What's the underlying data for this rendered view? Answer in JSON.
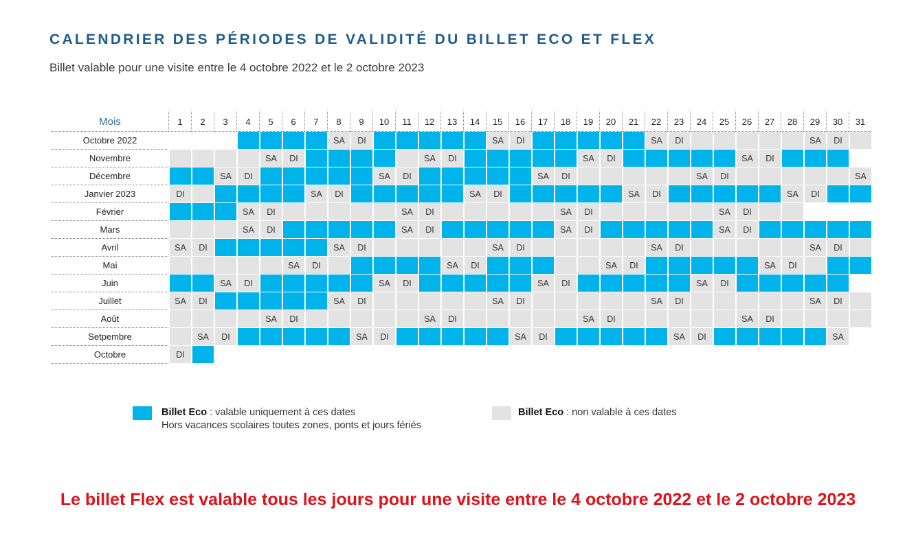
{
  "title": "CALENDRIER DES PÉRIODES DE VALIDITÉ DU BILLET ECO ET FLEX",
  "subtitle": "Billet valable pour une visite entre le 4 octobre 2022 et le 2 octobre 2023",
  "colors": {
    "eco_valid": "#00b3ea",
    "eco_not_valid": "#e3e3e3",
    "title": "#1f5c8c",
    "flex_note": "#e0111b"
  },
  "calendar": {
    "month_header": "Mois",
    "days": [
      "1",
      "2",
      "3",
      "4",
      "5",
      "6",
      "7",
      "8",
      "9",
      "10",
      "11",
      "12",
      "13",
      "14",
      "15",
      "16",
      "17",
      "18",
      "19",
      "20",
      "21",
      "22",
      "23",
      "24",
      "25",
      "26",
      "27",
      "28",
      "29",
      "30",
      "31"
    ],
    "months": [
      {
        "name": "Octobre 2022",
        "cells": [
          "",
          "",
          "",
          "B",
          "B",
          "B",
          "B",
          "SA",
          "DI",
          "B",
          "B",
          "B",
          "B",
          "B",
          "SA",
          "DI",
          "B",
          "B",
          "B",
          "B",
          "B",
          "SA",
          "DI",
          "G",
          "G",
          "G",
          "G",
          "G",
          "SA",
          "DI",
          "G"
        ]
      },
      {
        "name": "Novembre",
        "cells": [
          "G",
          "G",
          "G",
          "G",
          "SA",
          "DI",
          "B",
          "B",
          "B",
          "B",
          "G",
          "SA",
          "DI",
          "B",
          "B",
          "B",
          "B",
          "B",
          "SA",
          "DI",
          "B",
          "B",
          "B",
          "B",
          "B",
          "SA",
          "DI",
          "B",
          "B",
          "B",
          ""
        ]
      },
      {
        "name": "Décembre",
        "cells": [
          "B",
          "B",
          "SA",
          "DI",
          "B",
          "B",
          "B",
          "B",
          "B",
          "SA",
          "DI",
          "B",
          "B",
          "B",
          "B",
          "B",
          "SA",
          "DI",
          "G",
          "G",
          "G",
          "G",
          "G",
          "SA",
          "DI",
          "G",
          "G",
          "G",
          "G",
          "G",
          "SA"
        ]
      },
      {
        "name": "Janvier 2023",
        "cells": [
          "DI",
          "G",
          "B",
          "B",
          "B",
          "B",
          "SA",
          "DI",
          "B",
          "B",
          "B",
          "B",
          "B",
          "SA",
          "DI",
          "B",
          "B",
          "B",
          "B",
          "B",
          "SA",
          "DI",
          "B",
          "B",
          "B",
          "B",
          "B",
          "SA",
          "DI",
          "B",
          "B"
        ]
      },
      {
        "name": "Février",
        "cells": [
          "B",
          "B",
          "B",
          "SA",
          "DI",
          "G",
          "G",
          "G",
          "G",
          "G",
          "SA",
          "DI",
          "G",
          "G",
          "G",
          "G",
          "G",
          "SA",
          "DI",
          "G",
          "G",
          "G",
          "G",
          "G",
          "SA",
          "DI",
          "G",
          "G",
          "",
          "",
          ""
        ]
      },
      {
        "name": "Mars",
        "cells": [
          "G",
          "G",
          "G",
          "SA",
          "DI",
          "B",
          "B",
          "B",
          "B",
          "B",
          "SA",
          "DI",
          "B",
          "B",
          "B",
          "B",
          "B",
          "SA",
          "DI",
          "B",
          "B",
          "B",
          "B",
          "B",
          "SA",
          "DI",
          "B",
          "B",
          "B",
          "B",
          "B"
        ]
      },
      {
        "name": "Avril",
        "cells": [
          "SA",
          "DI",
          "B",
          "B",
          "B",
          "B",
          "B",
          "SA",
          "DI",
          "G",
          "G",
          "G",
          "G",
          "G",
          "SA",
          "DI",
          "G",
          "G",
          "G",
          "G",
          "G",
          "SA",
          "DI",
          "G",
          "G",
          "G",
          "G",
          "G",
          "SA",
          "DI",
          "G"
        ]
      },
      {
        "name": "Mai",
        "cells": [
          "G",
          "G",
          "G",
          "G",
          "G",
          "SA",
          "DI",
          "G",
          "B",
          "B",
          "B",
          "B",
          "SA",
          "DI",
          "B",
          "B",
          "B",
          "G",
          "G",
          "SA",
          "DI",
          "B",
          "B",
          "B",
          "B",
          "B",
          "SA",
          "DI",
          "G",
          "B",
          "B"
        ]
      },
      {
        "name": "Juin",
        "cells": [
          "B",
          "B",
          "SA",
          "DI",
          "B",
          "B",
          "B",
          "B",
          "B",
          "SA",
          "DI",
          "B",
          "B",
          "B",
          "B",
          "B",
          "SA",
          "DI",
          "B",
          "B",
          "B",
          "B",
          "B",
          "SA",
          "DI",
          "B",
          "B",
          "B",
          "B",
          "B",
          ""
        ]
      },
      {
        "name": "Juillet",
        "cells": [
          "SA",
          "DI",
          "B",
          "B",
          "B",
          "B",
          "B",
          "SA",
          "DI",
          "G",
          "G",
          "G",
          "G",
          "G",
          "SA",
          "DI",
          "G",
          "G",
          "G",
          "G",
          "G",
          "SA",
          "DI",
          "G",
          "G",
          "G",
          "G",
          "G",
          "SA",
          "DI",
          "G"
        ]
      },
      {
        "name": "Août",
        "cells": [
          "G",
          "G",
          "G",
          "G",
          "SA",
          "DI",
          "G",
          "G",
          "G",
          "G",
          "G",
          "SA",
          "DI",
          "G",
          "G",
          "G",
          "G",
          "G",
          "SA",
          "DI",
          "G",
          "G",
          "G",
          "G",
          "G",
          "SA",
          "DI",
          "G",
          "G",
          "G",
          "G"
        ]
      },
      {
        "name": "Setpembre",
        "cells": [
          "G",
          "SA",
          "DI",
          "B",
          "B",
          "B",
          "B",
          "B",
          "SA",
          "DI",
          "B",
          "B",
          "B",
          "B",
          "B",
          "SA",
          "DI",
          "B",
          "B",
          "B",
          "B",
          "B",
          "SA",
          "DI",
          "B",
          "B",
          "B",
          "B",
          "B",
          "SA",
          ""
        ]
      },
      {
        "name": "Octobre",
        "cells": [
          "DI",
          "B",
          "",
          "",
          "",
          "",
          "",
          "",
          "",
          "",
          "",
          "",
          "",
          "",
          "",
          "",
          "",
          "",
          "",
          "",
          "",
          "",
          "",
          "",
          "",
          "",
          "",
          "",
          "",
          "",
          ""
        ]
      }
    ]
  },
  "legend": {
    "eco_label": "Billet Eco",
    "eco_text": " : valable uniquement à ces dates",
    "eco_note": "Hors vacances scolaires toutes zones, ponts et jours fériés",
    "non_label": "Billet Eco",
    "non_text": " : non valable à ces dates"
  },
  "flex_note": "Le billet Flex est valable tous les jours pour une visite entre le 4 octobre 2022 et le 2 octobre 2023"
}
